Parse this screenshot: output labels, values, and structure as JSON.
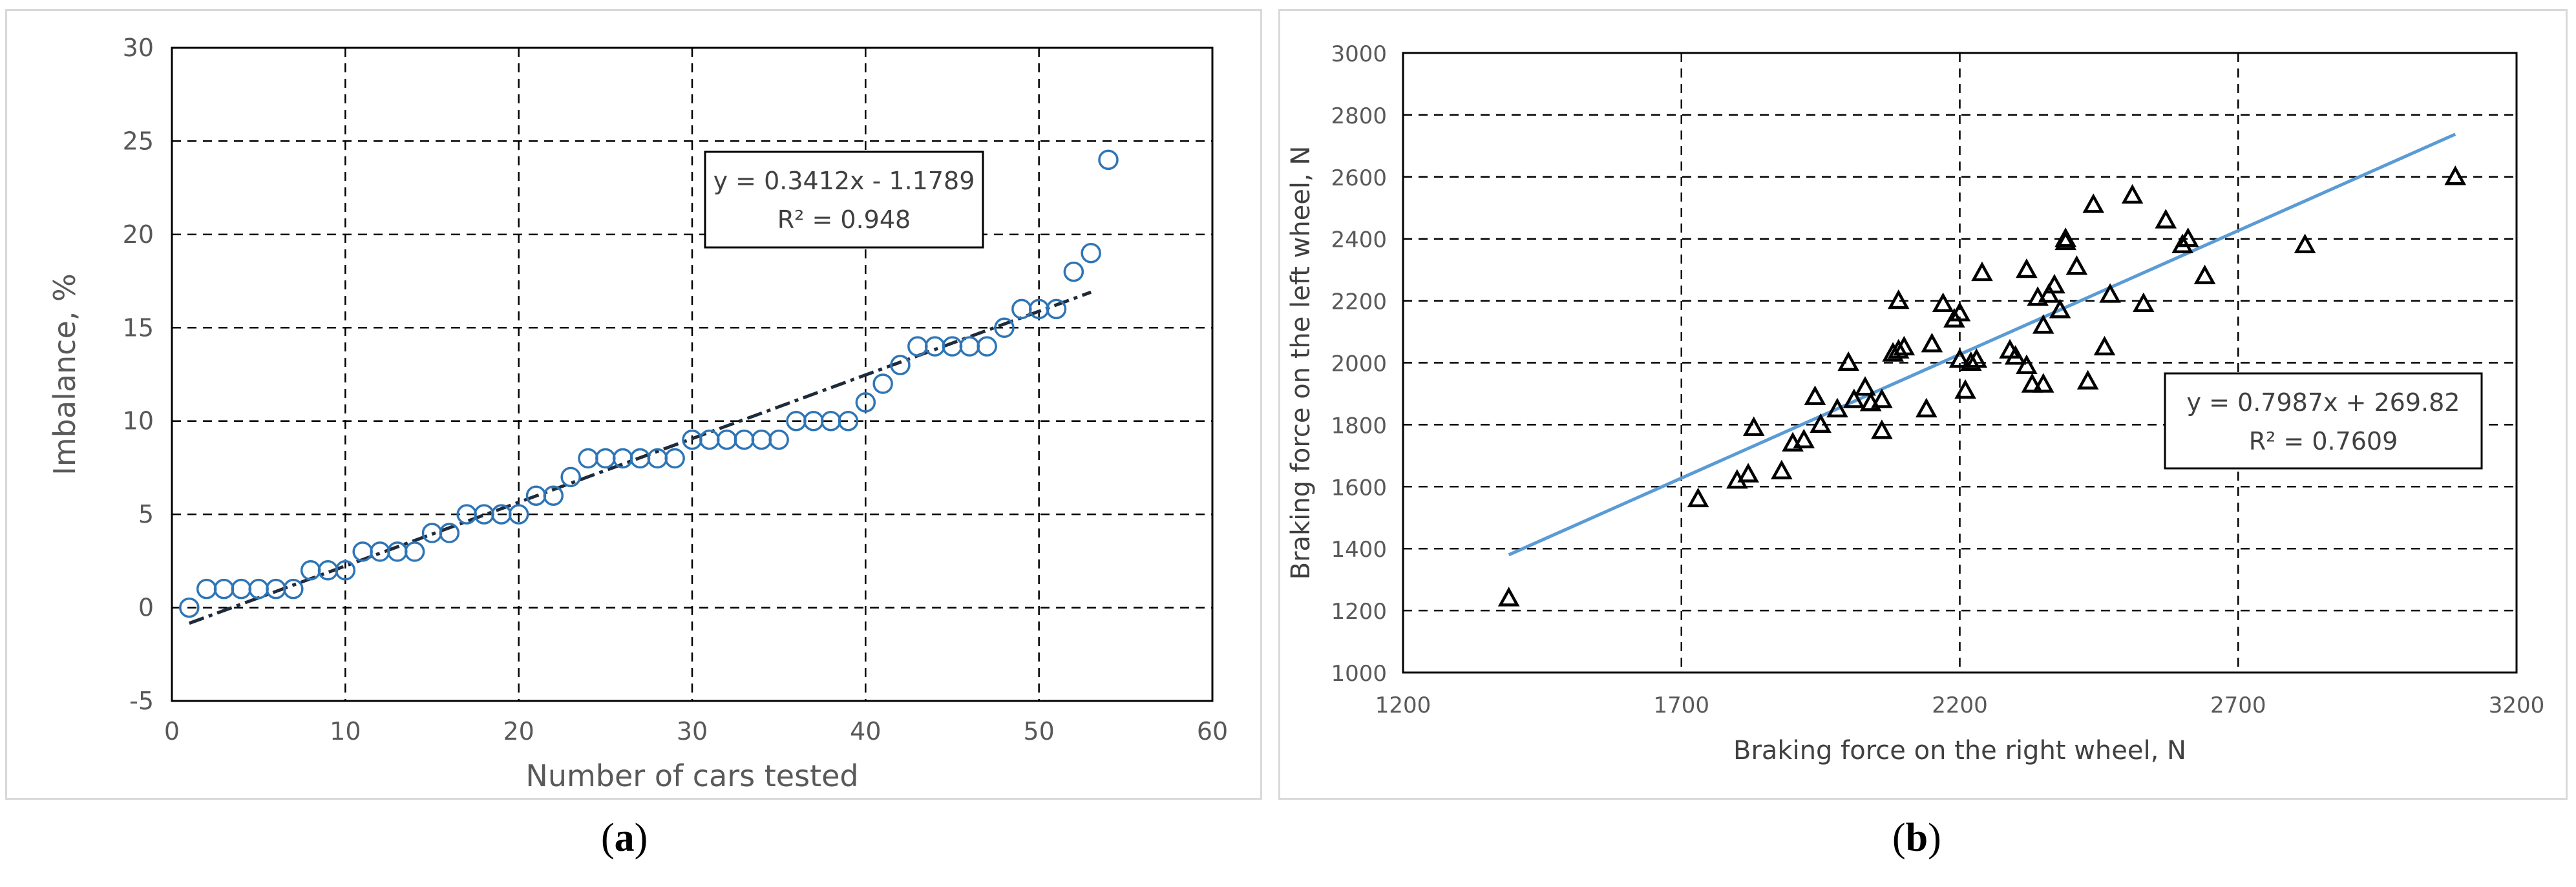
{
  "captions": {
    "a": "a",
    "b": "b"
  },
  "chart_data": [
    {
      "type": "scatter",
      "xlabel": "Number  of cars tested",
      "ylabel": "Imbalance, %",
      "xlim": [
        0,
        60
      ],
      "ylim": [
        -5,
        30
      ],
      "xticks": [
        "0",
        "10",
        "20",
        "30",
        "40",
        "50",
        "60"
      ],
      "yticks": [
        "-5",
        "0",
        "5",
        "10",
        "15",
        "20",
        "25",
        "30"
      ],
      "grid": true,
      "marker": "circle",
      "color": "#2e75b6",
      "trendline_color": "#1f2a3a",
      "x": [
        1,
        2,
        3,
        4,
        5,
        6,
        7,
        8,
        9,
        10,
        11,
        12,
        13,
        14,
        15,
        16,
        17,
        18,
        19,
        20,
        21,
        22,
        23,
        24,
        25,
        26,
        27,
        28,
        29,
        30,
        31,
        32,
        33,
        34,
        35,
        36,
        37,
        38,
        39,
        40,
        41,
        42,
        43,
        44,
        45,
        46,
        47,
        48,
        49,
        50,
        51,
        52,
        53,
        54
      ],
      "y": [
        0,
        1,
        1,
        1,
        1,
        1,
        1,
        2,
        2,
        2,
        3,
        3,
        3,
        3,
        4,
        4,
        5,
        5,
        5,
        5,
        6,
        6,
        7,
        8,
        8,
        8,
        8,
        8,
        8,
        9,
        9,
        9,
        9,
        9,
        9,
        10,
        10,
        10,
        10,
        11,
        12,
        13,
        14,
        14,
        14,
        14,
        14,
        15,
        16,
        16,
        16,
        18,
        19,
        24
      ],
      "trendline": {
        "slope": 0.3412,
        "intercept": -1.1789,
        "x_range": [
          1,
          53
        ]
      },
      "equation": "y = 0.3412x - 1.1789",
      "r2": "R² = 0.948"
    },
    {
      "type": "scatter",
      "xlabel": "Braking force on the right wheel, N",
      "ylabel": "Braking force on the left wheel, N",
      "xlim": [
        1200,
        3200
      ],
      "ylim": [
        1000,
        3000
      ],
      "xticks": [
        "1200",
        "1700",
        "2200",
        "2700",
        "3200"
      ],
      "yticks": [
        "1000",
        "1200",
        "1400",
        "1600",
        "1800",
        "2000",
        "2200",
        "2400",
        "2600",
        "2800",
        "3000"
      ],
      "grid": true,
      "marker": "triangle",
      "color": "#000000",
      "trendline_color": "#5b9bd5",
      "x": [
        1390,
        1730,
        1800,
        1820,
        1830,
        1880,
        1900,
        1920,
        1940,
        1950,
        1980,
        2000,
        2010,
        2030,
        2040,
        2060,
        2060,
        2080,
        2090,
        2090,
        2100,
        2140,
        2150,
        2170,
        2190,
        2200,
        2200,
        2210,
        2220,
        2230,
        2240,
        2290,
        2300,
        2320,
        2320,
        2330,
        2340,
        2350,
        2350,
        2360,
        2370,
        2380,
        2390,
        2390,
        2410,
        2430,
        2440,
        2460,
        2470,
        2510,
        2530,
        2570,
        2600,
        2610,
        2640,
        2820,
        3090
      ],
      "y": [
        1240,
        1560,
        1620,
        1640,
        1790,
        1650,
        1740,
        1750,
        1890,
        1800,
        1850,
        2000,
        1880,
        1920,
        1870,
        1780,
        1880,
        2030,
        2040,
        2200,
        2050,
        1850,
        2060,
        2190,
        2140,
        2160,
        2010,
        1910,
        2000,
        2010,
        2290,
        2040,
        2020,
        1990,
        2300,
        1930,
        2210,
        1930,
        2120,
        2220,
        2250,
        2170,
        2390,
        2400,
        2310,
        1940,
        2510,
        2050,
        2220,
        2540,
        2190,
        2460,
        2380,
        2400,
        2280,
        2380,
        2600
      ],
      "trendline": {
        "slope": 0.7987,
        "intercept": 269.82,
        "x_range": [
          1390,
          3090
        ]
      },
      "equation": "y = 0.7987x + 269.82",
      "r2": "R² = 0.7609"
    }
  ]
}
